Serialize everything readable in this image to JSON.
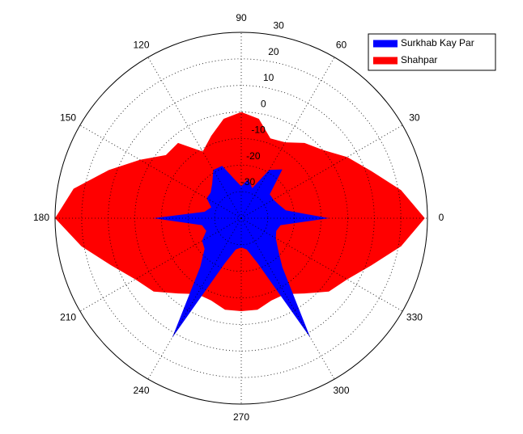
{
  "chart_data": {
    "type": "polar",
    "theta": [
      0,
      10,
      20,
      30,
      40,
      50,
      60,
      70,
      80,
      90,
      100,
      110,
      120,
      130,
      140,
      150,
      160,
      170,
      180,
      190,
      200,
      210,
      220,
      230,
      240,
      250,
      260,
      270,
      280,
      290,
      300,
      310,
      320,
      330,
      340,
      350
    ],
    "series": [
      {
        "name": "Shahpar",
        "color": "#ff0000",
        "values": [
          29,
          21,
          12,
          6,
          0,
          -3,
          -7,
          -8,
          -2,
          0,
          -2,
          -7,
          -11,
          -3,
          -3,
          4,
          13,
          24,
          30,
          21,
          12,
          6,
          3,
          -3,
          -7,
          -7,
          -5,
          -5,
          -5,
          -7,
          -7,
          -3,
          3,
          6,
          12,
          21
        ]
      },
      {
        "name": "Surkhab Kay Par",
        "color": "#0000ff",
        "values": [
          -7,
          -23,
          -25,
          -26,
          -26,
          -16,
          -19,
          -28,
          -25,
          -28,
          -25,
          -19,
          -19,
          -23,
          -25,
          -25,
          -28,
          -26,
          -7,
          -25,
          -26,
          -23,
          -22,
          -16,
          12,
          -22,
          -28,
          -29,
          -28,
          -22,
          12,
          -16,
          -22,
          -25,
          -26,
          -25
        ]
      }
    ],
    "legend_order": [
      1,
      0
    ],
    "legend": "upper right",
    "rlim": [
      -40,
      30
    ],
    "rticks": [
      -30,
      -20,
      -10,
      0,
      10,
      20,
      30
    ],
    "thetaticks": [
      0,
      30,
      60,
      90,
      120,
      150,
      180,
      210,
      240,
      270,
      300,
      330
    ],
    "grid": true
  }
}
